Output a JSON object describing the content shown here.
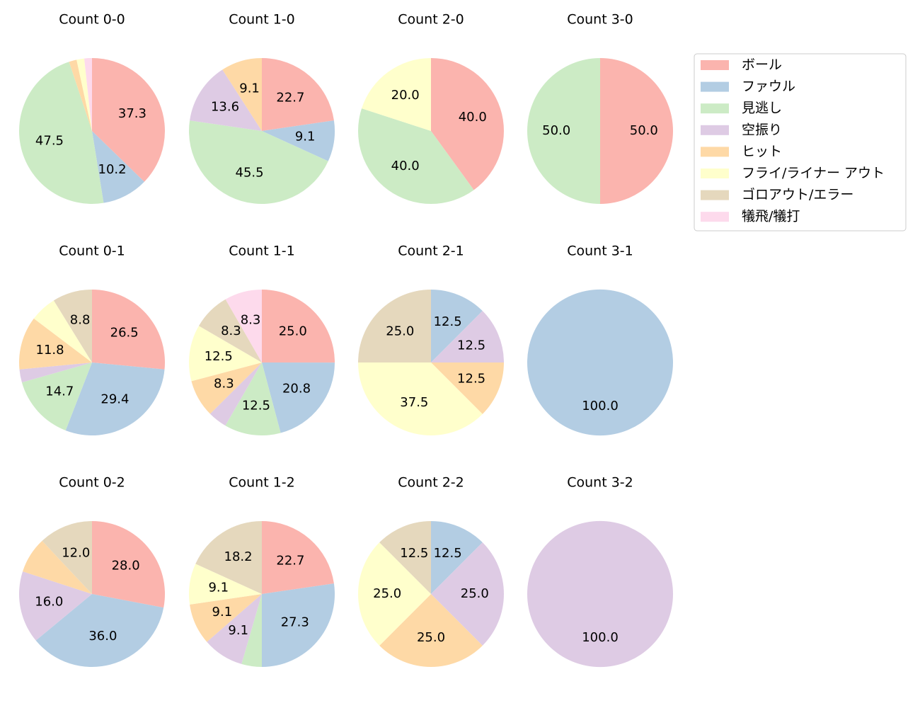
{
  "chart_data": [
    {
      "type": "pie",
      "title": "Count 0-0",
      "categories": [
        "ボール",
        "ファウル",
        "見逃し",
        "空振り",
        "ヒット",
        "フライ/ライナー アウト",
        "ゴロアウト/エラー",
        "犠飛/犠打"
      ],
      "colors": [
        "#fbb4ae",
        "#b3cde3",
        "#ccebc5",
        "#decbe4",
        "#fed9a6",
        "#ffffcc",
        "#e5d8bd",
        "#fddaec"
      ],
      "values": [
        37.3,
        10.2,
        47.5,
        0,
        1.7,
        1.7,
        0,
        1.7
      ],
      "value_labels": [
        "37.3",
        "10.2",
        "47.5",
        null,
        null,
        null,
        null,
        null
      ]
    },
    {
      "type": "pie",
      "title": "Count 1-0",
      "categories": [
        "ボール",
        "ファウル",
        "見逃し",
        "空振り",
        "ヒット",
        "フライ/ライナー アウト",
        "ゴロアウト/エラー",
        "犠飛/犠打"
      ],
      "colors": [
        "#fbb4ae",
        "#b3cde3",
        "#ccebc5",
        "#decbe4",
        "#fed9a6",
        "#ffffcc",
        "#e5d8bd",
        "#fddaec"
      ],
      "values": [
        22.7,
        9.1,
        45.5,
        13.6,
        9.1,
        0,
        0,
        0
      ],
      "value_labels": [
        "22.7",
        "9.1",
        "45.5",
        "13.6",
        "9.1",
        null,
        null,
        null
      ]
    },
    {
      "type": "pie",
      "title": "Count 2-0",
      "categories": [
        "ボール",
        "ファウル",
        "見逃し",
        "空振り",
        "ヒット",
        "フライ/ライナー アウト",
        "ゴロアウト/エラー",
        "犠飛/犠打"
      ],
      "colors": [
        "#fbb4ae",
        "#b3cde3",
        "#ccebc5",
        "#decbe4",
        "#fed9a6",
        "#ffffcc",
        "#e5d8bd",
        "#fddaec"
      ],
      "values": [
        40.0,
        0,
        40.0,
        0,
        0,
        20.0,
        0,
        0
      ],
      "value_labels": [
        "40.0",
        null,
        "40.0",
        null,
        null,
        "20.0",
        null,
        null
      ]
    },
    {
      "type": "pie",
      "title": "Count 3-0",
      "categories": [
        "ボール",
        "ファウル",
        "見逃し",
        "空振り",
        "ヒット",
        "フライ/ライナー アウト",
        "ゴロアウト/エラー",
        "犠飛/犠打"
      ],
      "colors": [
        "#fbb4ae",
        "#b3cde3",
        "#ccebc5",
        "#decbe4",
        "#fed9a6",
        "#ffffcc",
        "#e5d8bd",
        "#fddaec"
      ],
      "values": [
        50.0,
        0,
        50.0,
        0,
        0,
        0,
        0,
        0
      ],
      "value_labels": [
        "50.0",
        null,
        "50.0",
        null,
        null,
        null,
        null,
        null
      ]
    },
    {
      "type": "pie",
      "title": "Count 0-1",
      "categories": [
        "ボール",
        "ファウル",
        "見逃し",
        "空振り",
        "ヒット",
        "フライ/ライナー アウト",
        "ゴロアウト/エラー",
        "犠飛/犠打"
      ],
      "colors": [
        "#fbb4ae",
        "#b3cde3",
        "#ccebc5",
        "#decbe4",
        "#fed9a6",
        "#ffffcc",
        "#e5d8bd",
        "#fddaec"
      ],
      "values": [
        26.5,
        29.4,
        14.7,
        2.9,
        11.8,
        5.9,
        8.8,
        0
      ],
      "value_labels": [
        "26.5",
        "29.4",
        "14.7",
        null,
        "11.8",
        null,
        "8.8",
        null
      ]
    },
    {
      "type": "pie",
      "title": "Count 1-1",
      "categories": [
        "ボール",
        "ファウル",
        "見逃し",
        "空振り",
        "ヒット",
        "フライ/ライナー アウト",
        "ゴロアウト/エラー",
        "犠飛/犠打"
      ],
      "colors": [
        "#fbb4ae",
        "#b3cde3",
        "#ccebc5",
        "#decbe4",
        "#fed9a6",
        "#ffffcc",
        "#e5d8bd",
        "#fddaec"
      ],
      "values": [
        25.0,
        20.8,
        12.5,
        4.2,
        8.3,
        12.5,
        8.3,
        8.3
      ],
      "value_labels": [
        "25.0",
        "20.8",
        "12.5",
        null,
        "8.3",
        "12.5",
        "8.3",
        "8.3"
      ]
    },
    {
      "type": "pie",
      "title": "Count 2-1",
      "categories": [
        "ボール",
        "ファウル",
        "見逃し",
        "空振り",
        "ヒット",
        "フライ/ライナー アウト",
        "ゴロアウト/エラー",
        "犠飛/犠打"
      ],
      "colors": [
        "#fbb4ae",
        "#b3cde3",
        "#ccebc5",
        "#decbe4",
        "#fed9a6",
        "#ffffcc",
        "#e5d8bd",
        "#fddaec"
      ],
      "values": [
        0,
        12.5,
        0,
        12.5,
        12.5,
        37.5,
        25.0,
        0
      ],
      "value_labels": [
        null,
        "12.5",
        null,
        "12.5",
        "12.5",
        "37.5",
        "25.0",
        null
      ]
    },
    {
      "type": "pie",
      "title": "Count 3-1",
      "categories": [
        "ボール",
        "ファウル",
        "見逃し",
        "空振り",
        "ヒット",
        "フライ/ライナー アウト",
        "ゴロアウト/エラー",
        "犠飛/犠打"
      ],
      "colors": [
        "#fbb4ae",
        "#b3cde3",
        "#ccebc5",
        "#decbe4",
        "#fed9a6",
        "#ffffcc",
        "#e5d8bd",
        "#fddaec"
      ],
      "values": [
        0,
        100.0,
        0,
        0,
        0,
        0,
        0,
        0
      ],
      "value_labels": [
        null,
        "100.0",
        null,
        null,
        null,
        null,
        null,
        null
      ]
    },
    {
      "type": "pie",
      "title": "Count 0-2",
      "categories": [
        "ボール",
        "ファウル",
        "見逃し",
        "空振り",
        "ヒット",
        "フライ/ライナー アウト",
        "ゴロアウト/エラー",
        "犠飛/犠打"
      ],
      "colors": [
        "#fbb4ae",
        "#b3cde3",
        "#ccebc5",
        "#decbe4",
        "#fed9a6",
        "#ffffcc",
        "#e5d8bd",
        "#fddaec"
      ],
      "values": [
        28.0,
        36.0,
        0,
        16.0,
        8.0,
        0,
        12.0,
        0
      ],
      "value_labels": [
        "28.0",
        "36.0",
        null,
        "16.0",
        null,
        null,
        "12.0",
        null
      ]
    },
    {
      "type": "pie",
      "title": "Count 1-2",
      "categories": [
        "ボール",
        "ファウル",
        "見逃し",
        "空振り",
        "ヒット",
        "フライ/ライナー アウト",
        "ゴロアウト/エラー",
        "犠飛/犠打"
      ],
      "colors": [
        "#fbb4ae",
        "#b3cde3",
        "#ccebc5",
        "#decbe4",
        "#fed9a6",
        "#ffffcc",
        "#e5d8bd",
        "#fddaec"
      ],
      "values": [
        22.7,
        27.3,
        4.5,
        9.1,
        9.1,
        9.1,
        18.2,
        0
      ],
      "value_labels": [
        "22.7",
        "27.3",
        null,
        "9.1",
        "9.1",
        "9.1",
        "18.2",
        null
      ]
    },
    {
      "type": "pie",
      "title": "Count 2-2",
      "categories": [
        "ボール",
        "ファウル",
        "見逃し",
        "空振り",
        "ヒット",
        "フライ/ライナー アウト",
        "ゴロアウト/エラー",
        "犠飛/犠打"
      ],
      "colors": [
        "#fbb4ae",
        "#b3cde3",
        "#ccebc5",
        "#decbe4",
        "#fed9a6",
        "#ffffcc",
        "#e5d8bd",
        "#fddaec"
      ],
      "values": [
        0,
        12.5,
        0,
        25.0,
        25.0,
        25.0,
        12.5,
        0
      ],
      "value_labels": [
        null,
        "12.5",
        null,
        "25.0",
        "25.0",
        "25.0",
        "12.5",
        null
      ]
    },
    {
      "type": "pie",
      "title": "Count 3-2",
      "categories": [
        "ボール",
        "ファウル",
        "見逃し",
        "空振り",
        "ヒット",
        "フライ/ライナー アウト",
        "ゴロアウト/エラー",
        "犠飛/犠打"
      ],
      "colors": [
        "#fbb4ae",
        "#b3cde3",
        "#ccebc5",
        "#decbe4",
        "#fed9a6",
        "#ffffcc",
        "#e5d8bd",
        "#fddaec"
      ],
      "values": [
        0,
        0,
        0,
        100.0,
        0,
        0,
        0,
        0
      ],
      "value_labels": [
        null,
        null,
        null,
        "100.0",
        null,
        null,
        null,
        null
      ]
    }
  ]
}
